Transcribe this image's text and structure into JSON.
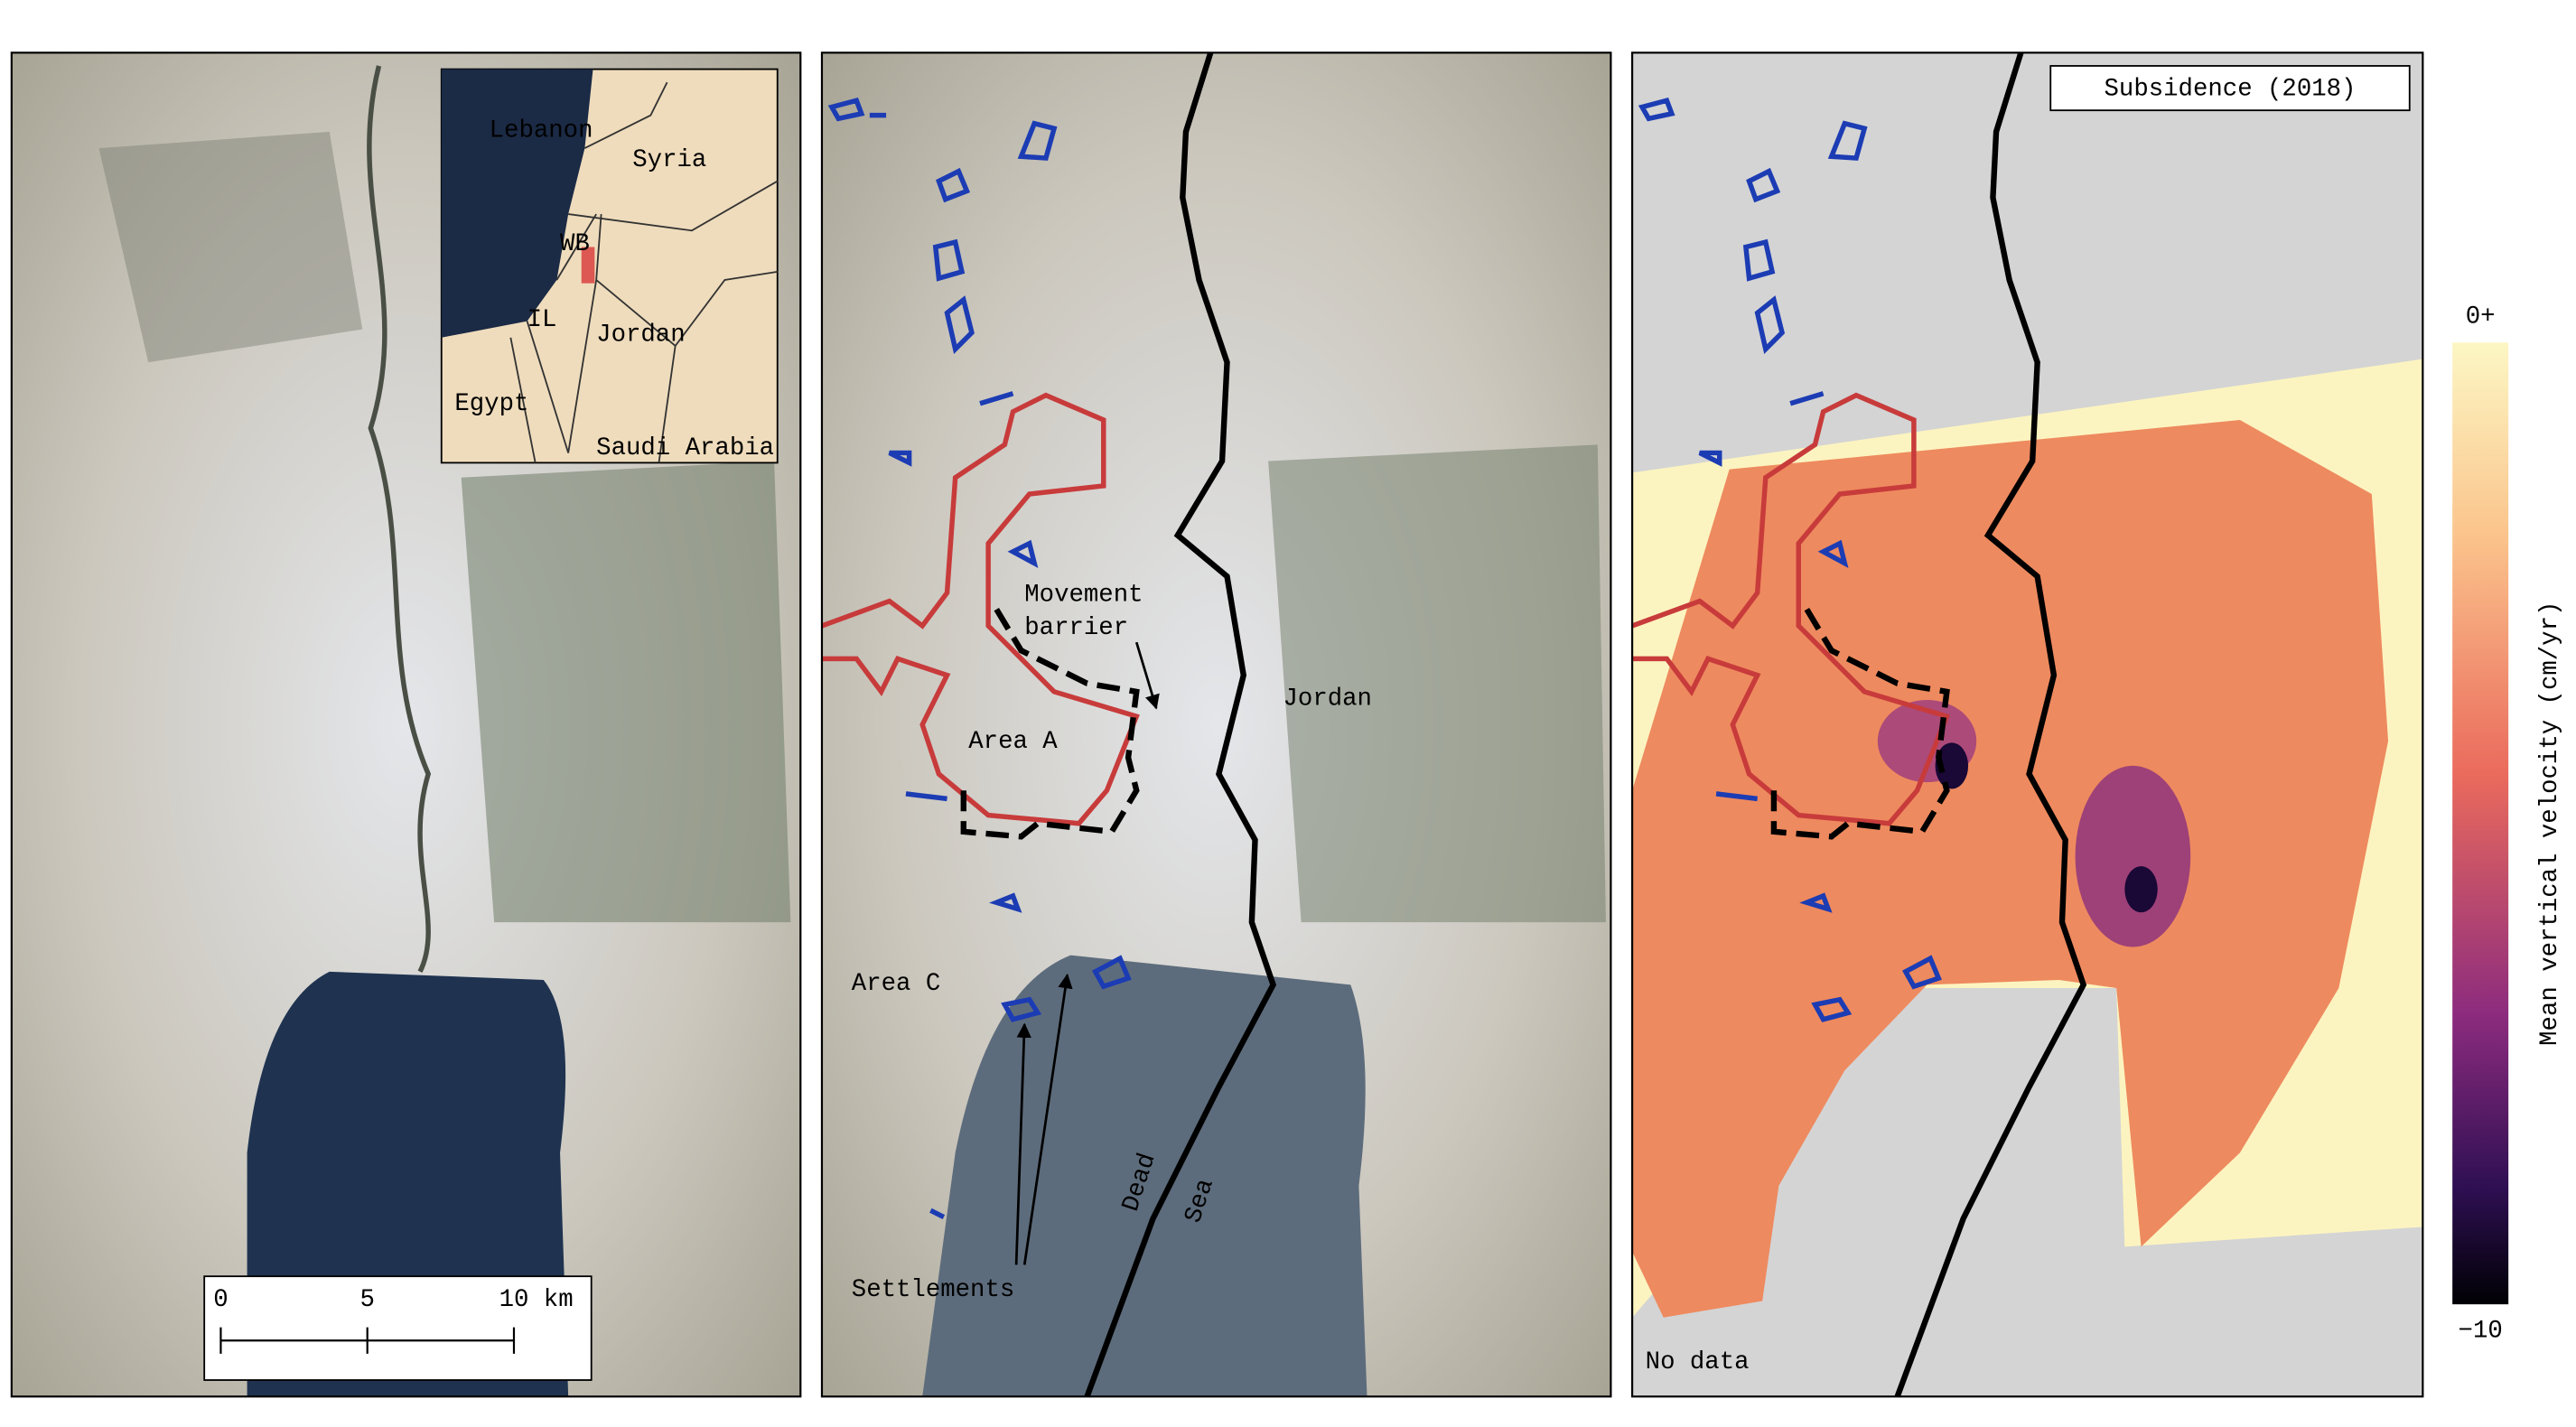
{
  "inset": {
    "labels": [
      "Lebanon",
      "Syria",
      "WB",
      "IL",
      "Jordan",
      "Egypt",
      "Saudi Arabia"
    ]
  },
  "scale_bar": {
    "labels": [
      "0",
      "5",
      "10 km"
    ]
  },
  "panel_2": {
    "movement_barrier": [
      "Movement",
      "barrier"
    ],
    "area_a": "Area A",
    "jordan": "Jordan",
    "area_c": "Area C",
    "dead_sea": [
      "Dead",
      "Sea"
    ],
    "settlements": "Settlements"
  },
  "panel_3": {
    "title": "Subsidence (2018)",
    "no_data": "No data"
  },
  "colorbar": {
    "label": "Mean vertical velocity (cm/yr)",
    "top_label": "0+",
    "bottom_label": "−10"
  }
}
